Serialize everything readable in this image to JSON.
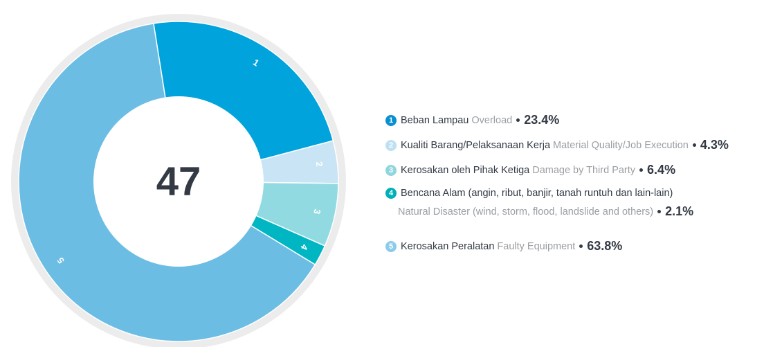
{
  "chart_data": {
    "type": "donut",
    "center_label": 47,
    "segment_labels": [
      "1",
      "2",
      "3",
      "4",
      "5"
    ],
    "categories": [
      "Beban Lampau",
      "Kualiti Barang/Pelaksanaan Kerja",
      "Kerosakan oleh Pihak Ketiga",
      "Bencana Alam (angin, ribut, banjir, tanah runtuh dan lain-lain)",
      "Kerosakan Peralatan"
    ],
    "categories_en": [
      "Overload",
      "Material Quality/Job Execution",
      "Damage by Third Party",
      "Natural Disaster (wind, storm, flood, landslide and others)",
      "Faulty Equipment"
    ],
    "values": [
      23.4,
      4.3,
      6.4,
      2.1,
      63.8
    ],
    "value_labels": [
      "23.4%",
      "4.3%",
      "6.4%",
      "2.1%",
      "63.8%"
    ],
    "colors": [
      "#00a3dc",
      "#c8e4f5",
      "#92dae1",
      "#00b6c3",
      "#6cbde4"
    ],
    "marker_colors": [
      "#0a90d0",
      "#bfe0f2",
      "#8fd6de",
      "#00b0b9",
      "#8ccbe9"
    ]
  }
}
